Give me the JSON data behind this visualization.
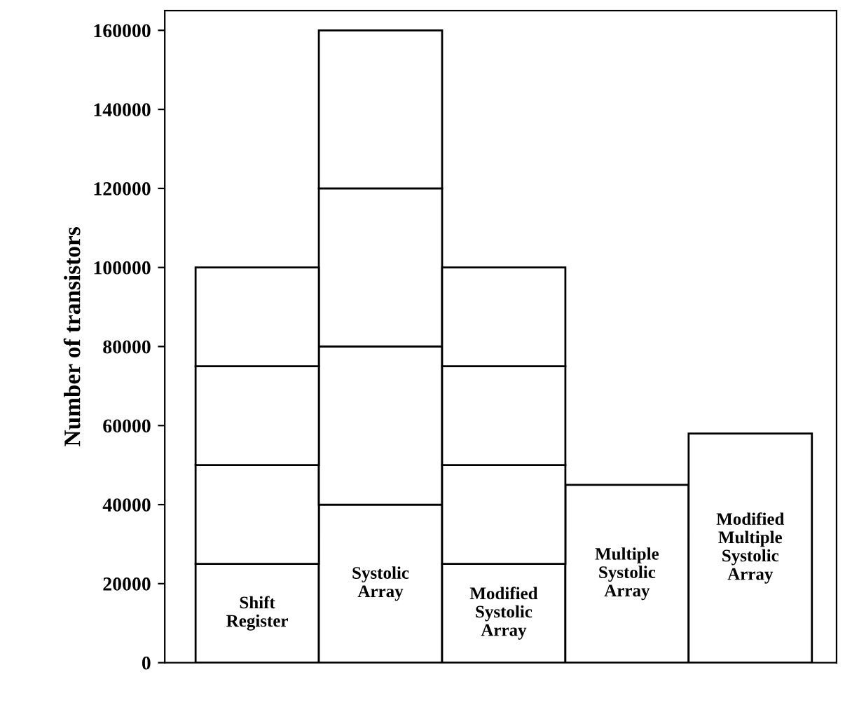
{
  "chart_data": {
    "type": "bar",
    "stacked": true,
    "ylabel": "Number of transistors",
    "categories": [
      "Shift\nRegister",
      "Systolic\nArray",
      "Modified\nSystolic\nArray",
      "Multiple\nSystolic\nArray",
      "Modified\nMultiple\nSystolic\nArray"
    ],
    "series": [
      {
        "color": "#ffffff",
        "values": [
          25000,
          40000,
          25000,
          45000,
          58000
        ]
      },
      {
        "color": "#ffffff",
        "values": [
          25000,
          40000,
          25000,
          null,
          null
        ]
      },
      {
        "color": "#ffffff",
        "values": [
          25000,
          40000,
          25000,
          null,
          null
        ]
      },
      {
        "color": "#ffffff",
        "values": [
          25000,
          40000,
          25000,
          null,
          null
        ]
      }
    ],
    "ylim": [
      0,
      165000
    ],
    "yticks": [
      0,
      20000,
      40000,
      60000,
      80000,
      100000,
      120000,
      140000,
      160000
    ],
    "grid": false,
    "legend": false,
    "tick_labels": "y"
  }
}
